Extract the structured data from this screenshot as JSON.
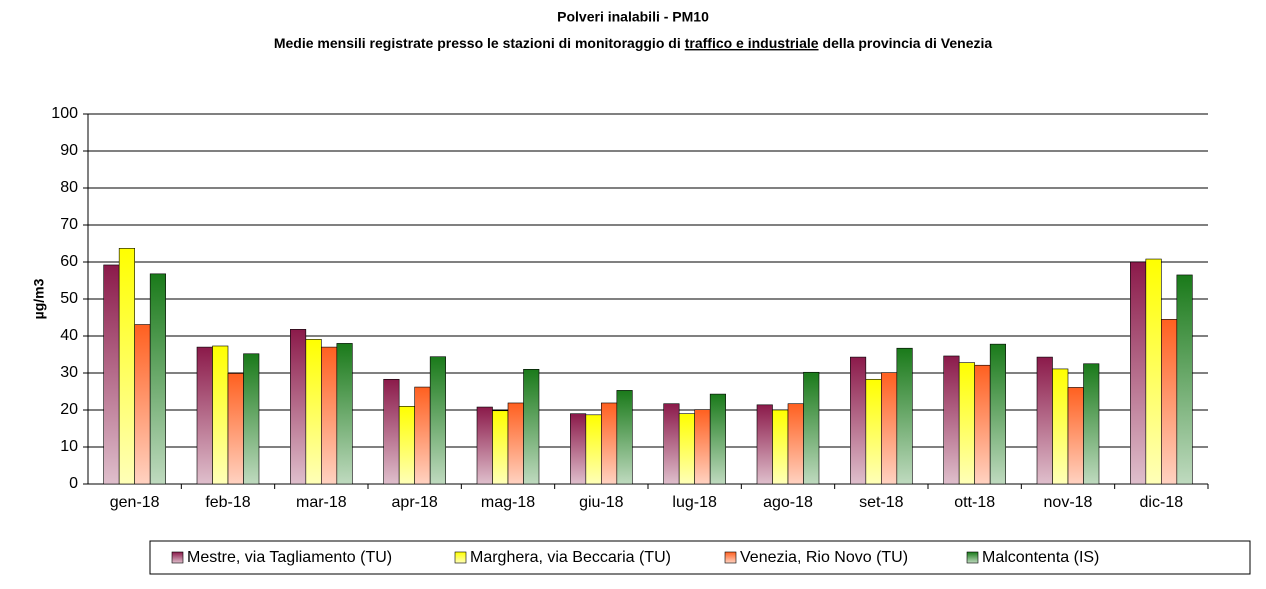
{
  "chart_data": {
    "type": "bar",
    "title": "Polveri inalabili - PM10",
    "subtitle": [
      "Medie mensili registrate presso le stazioni di monitoraggio di",
      "traffico e industriale",
      "della provincia di Venezia"
    ],
    "y_label": "µg/m3",
    "categories": [
      "gen-18",
      "feb-18",
      "mar-18",
      "apr-18",
      "mag-18",
      "giu-18",
      "lug-18",
      "ago-18",
      "set-18",
      "ott-18",
      "nov-18",
      "dic-18"
    ],
    "series": [
      {
        "name": "Mestre, via Tagliamento (TU)",
        "color": "#8b1a4a",
        "values": [
          59.2,
          37,
          41.8,
          28.3,
          20.8,
          19,
          21.7,
          21.4,
          34.3,
          34.6,
          34.3,
          60
        ]
      },
      {
        "name": "Marghera, via Beccaria (TU)",
        "color": "#ffff00",
        "values": [
          63.7,
          37.3,
          39.1,
          21,
          19.8,
          18.7,
          19,
          20,
          28.3,
          32.8,
          31.1,
          60.8
        ]
      },
      {
        "name": "Venezia, Rio Novo (TU)",
        "color": "#ff6020",
        "values": [
          43.1,
          29.9,
          37,
          26.2,
          21.9,
          21.9,
          20.1,
          21.7,
          30.1,
          32.1,
          26.1,
          44.5
        ]
      },
      {
        "name": "Malcontenta (IS)",
        "color": "#1a7a1a",
        "values": [
          56.8,
          35.2,
          38,
          34.4,
          31,
          25.3,
          24.3,
          30.2,
          36.7,
          37.8,
          32.5,
          56.5
        ]
      }
    ],
    "ylim": [
      0,
      100
    ],
    "yticks": [
      0,
      10,
      20,
      30,
      40,
      50,
      60,
      70,
      80,
      90,
      100
    ],
    "grid": true,
    "legend": "bottom"
  }
}
